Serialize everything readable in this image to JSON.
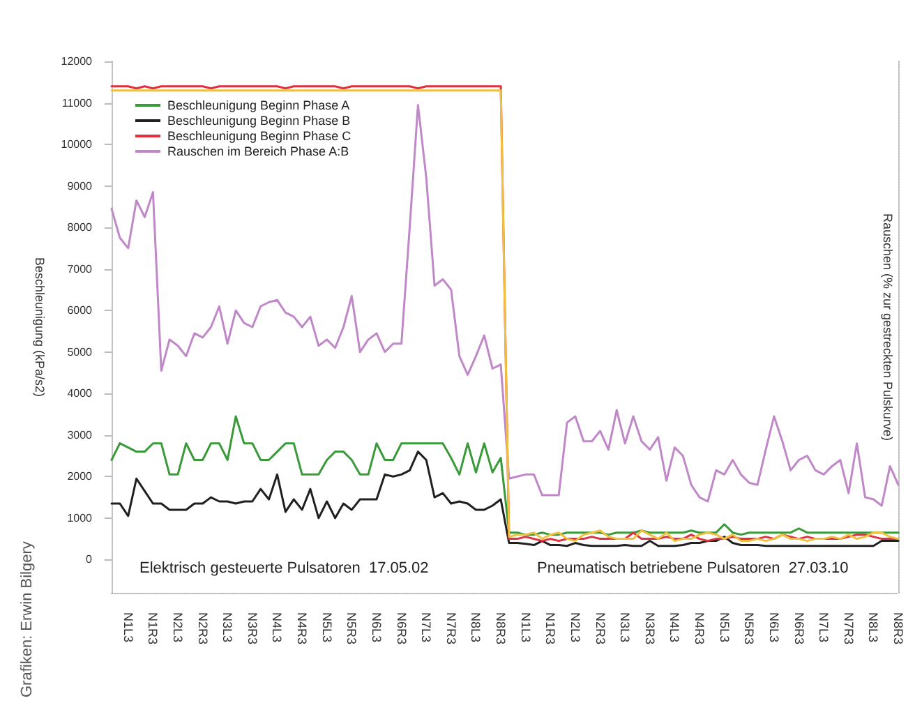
{
  "chart_data": {
    "type": "line",
    "ylabel": "Beschleunigung (kPa/s2)",
    "y2label": "Rauschen (% zur gestreckten Pulskurve)",
    "categories": [
      null,
      null,
      "N1L3",
      null,
      null,
      "N1R3",
      null,
      null,
      "N2L3",
      null,
      null,
      "N2R3",
      null,
      null,
      "N3L3",
      null,
      null,
      "N3R3",
      null,
      null,
      "N4L3",
      null,
      null,
      "N4R3",
      null,
      null,
      "N5L3",
      null,
      null,
      "N5R3",
      null,
      null,
      "N6L3",
      null,
      null,
      "N6R3",
      null,
      null,
      "N7L3",
      null,
      null,
      "N7R3",
      null,
      null,
      "N8L3",
      null,
      null,
      "N8R3",
      null,
      null,
      "N1L3",
      null,
      null,
      "N1R3",
      null,
      null,
      "N2L3",
      null,
      null,
      "N2R3",
      null,
      null,
      "N3L3",
      null,
      null,
      "N3R3",
      null,
      null,
      "N4L3",
      null,
      null,
      "N4R3",
      null,
      null,
      "N5L3",
      null,
      null,
      "N5R3",
      null,
      null,
      "N6L3",
      null,
      null,
      "N6R3",
      null,
      null,
      "N7L3",
      null,
      null,
      "N7R3",
      null,
      null,
      "N8L3",
      null,
      null,
      "N8R3"
    ],
    "series": [
      {
        "name": "Beschleunigung Beginn Phase A",
        "color": "#3a9a3a",
        "values": [
          2400,
          2800,
          2700,
          2600,
          2600,
          2800,
          2800,
          2050,
          2050,
          2800,
          2400,
          2400,
          2800,
          2800,
          2400,
          3450,
          2800,
          2800,
          2400,
          2400,
          2600,
          2800,
          2800,
          2050,
          2050,
          2050,
          2400,
          2600,
          2600,
          2400,
          2050,
          2050,
          2800,
          2400,
          2400,
          2800,
          2800,
          2800,
          2800,
          2800,
          2800,
          2450,
          2050,
          2800,
          2100,
          2800,
          2100,
          2450,
          650,
          650,
          600,
          600,
          650,
          600,
          600,
          650,
          650,
          650,
          650,
          650,
          600,
          650,
          650,
          650,
          700,
          650,
          650,
          650,
          650,
          650,
          700,
          650,
          650,
          650,
          850,
          650,
          600,
          650,
          650,
          650,
          650,
          650,
          650,
          750,
          650,
          650,
          650,
          650,
          650,
          650,
          650,
          650,
          650,
          650,
          650,
          650
        ]
      },
      {
        "name": "Beschleunigung Beginn Phase B",
        "color": "#202020",
        "values": [
          1350,
          1350,
          1050,
          1950,
          1650,
          1350,
          1350,
          1200,
          1200,
          1200,
          1350,
          1350,
          1500,
          1400,
          1400,
          1350,
          1400,
          1400,
          1700,
          1450,
          2050,
          1150,
          1450,
          1200,
          1700,
          1000,
          1400,
          1000,
          1350,
          1200,
          1450,
          1450,
          1450,
          2050,
          2000,
          2050,
          2150,
          2600,
          2400,
          1500,
          1600,
          1350,
          1400,
          1350,
          1200,
          1200,
          1300,
          1450,
          400,
          400,
          380,
          350,
          450,
          350,
          350,
          330,
          400,
          350,
          330,
          330,
          330,
          330,
          350,
          330,
          330,
          450,
          330,
          330,
          330,
          350,
          400,
          400,
          450,
          450,
          550,
          400,
          350,
          350,
          350,
          330,
          330,
          330,
          330,
          330,
          330,
          330,
          330,
          330,
          330,
          330,
          330,
          330,
          330,
          450,
          450,
          450
        ]
      },
      {
        "name": "Beschleunigung Beginn Phase C",
        "color": "#e03040",
        "values": [
          11400,
          11400,
          11400,
          11350,
          11400,
          11350,
          11400,
          11400,
          11400,
          11400,
          11400,
          11400,
          11350,
          11400,
          11400,
          11400,
          11400,
          11400,
          11400,
          11400,
          11400,
          11350,
          11400,
          11400,
          11400,
          11400,
          11400,
          11400,
          11350,
          11400,
          11400,
          11400,
          11400,
          11400,
          11400,
          11400,
          11400,
          11350,
          11400,
          11400,
          11400,
          11400,
          11400,
          11400,
          11400,
          11400,
          11400,
          11400,
          500,
          500,
          550,
          500,
          450,
          500,
          450,
          500,
          500,
          500,
          550,
          500,
          500,
          500,
          500,
          650,
          500,
          500,
          500,
          550,
          500,
          500,
          600,
          500,
          450,
          500,
          500,
          550,
          500,
          500,
          500,
          550,
          500,
          600,
          550,
          500,
          550,
          500,
          500,
          500,
          500,
          550,
          600,
          600,
          550,
          500,
          500,
          500
        ]
      },
      {
        "name": "Rauschen im Bereich Phase A:B",
        "color": "#c088c8",
        "values": [
          8450,
          7750,
          7500,
          8650,
          8250,
          8850,
          4550,
          5300,
          5150,
          4900,
          5450,
          5350,
          5600,
          6100,
          5200,
          6000,
          5700,
          5600,
          6100,
          6200,
          6250,
          5950,
          5850,
          5600,
          5850,
          5150,
          5300,
          5100,
          5600,
          6350,
          5000,
          5300,
          5450,
          5000,
          5200,
          5200,
          8000,
          10950,
          9200,
          6600,
          6750,
          6500,
          4900,
          4450,
          4900,
          5400,
          4600,
          4700,
          1950,
          2000,
          2050,
          2050,
          1550,
          1550,
          1550,
          3300,
          3450,
          2850,
          2850,
          3100,
          2650,
          3600,
          2800,
          3450,
          2850,
          2650,
          2950,
          1900,
          2700,
          2500,
          1800,
          1500,
          1400,
          2150,
          2050,
          2400,
          2050,
          1850,
          1800,
          2650,
          3450,
          2850,
          2150,
          2400,
          2500,
          2150,
          2050,
          2250,
          2400,
          1600,
          2800,
          1500,
          1450,
          1300,
          2250,
          1800
        ]
      },
      {
        "color": "#f0c040",
        "values": [
          11300,
          11300,
          11300,
          11300,
          11300,
          11300,
          11300,
          11300,
          11300,
          11300,
          11300,
          11300,
          11300,
          11300,
          11300,
          11300,
          11300,
          11300,
          11300,
          11300,
          11300,
          11300,
          11300,
          11300,
          11300,
          11300,
          11300,
          11300,
          11300,
          11300,
          11300,
          11300,
          11300,
          11300,
          11300,
          11300,
          11300,
          11300,
          11300,
          11300,
          11300,
          11300,
          11300,
          11300,
          11300,
          11300,
          11300,
          11300,
          550,
          600,
          600,
          650,
          500,
          600,
          650,
          500,
          450,
          600,
          650,
          700,
          550,
          500,
          500,
          500,
          700,
          600,
          500,
          650,
          450,
          500,
          500,
          600,
          650,
          600,
          500,
          600,
          450,
          450,
          500,
          450,
          500,
          600,
          500,
          500,
          450,
          500,
          500,
          550,
          500,
          600,
          500,
          550,
          650,
          650,
          550,
          500
        ]
      }
    ],
    "ylim": [
      -800,
      12000
    ],
    "yticks": [
      0,
      1000,
      2000,
      3000,
      4000,
      5000,
      6000,
      7000,
      8000,
      9000,
      10000,
      11000,
      12000
    ],
    "grid": false,
    "legend": "top left",
    "marker": "none",
    "line_style": "solid",
    "annotations": [
      "Elektrisch gesteuerte Pulsatoren  17.05.02",
      "Pneumatisch betriebene Pulsatoren  27.03.10",
      "Grafiken: Erwin Bilgery"
    ]
  }
}
